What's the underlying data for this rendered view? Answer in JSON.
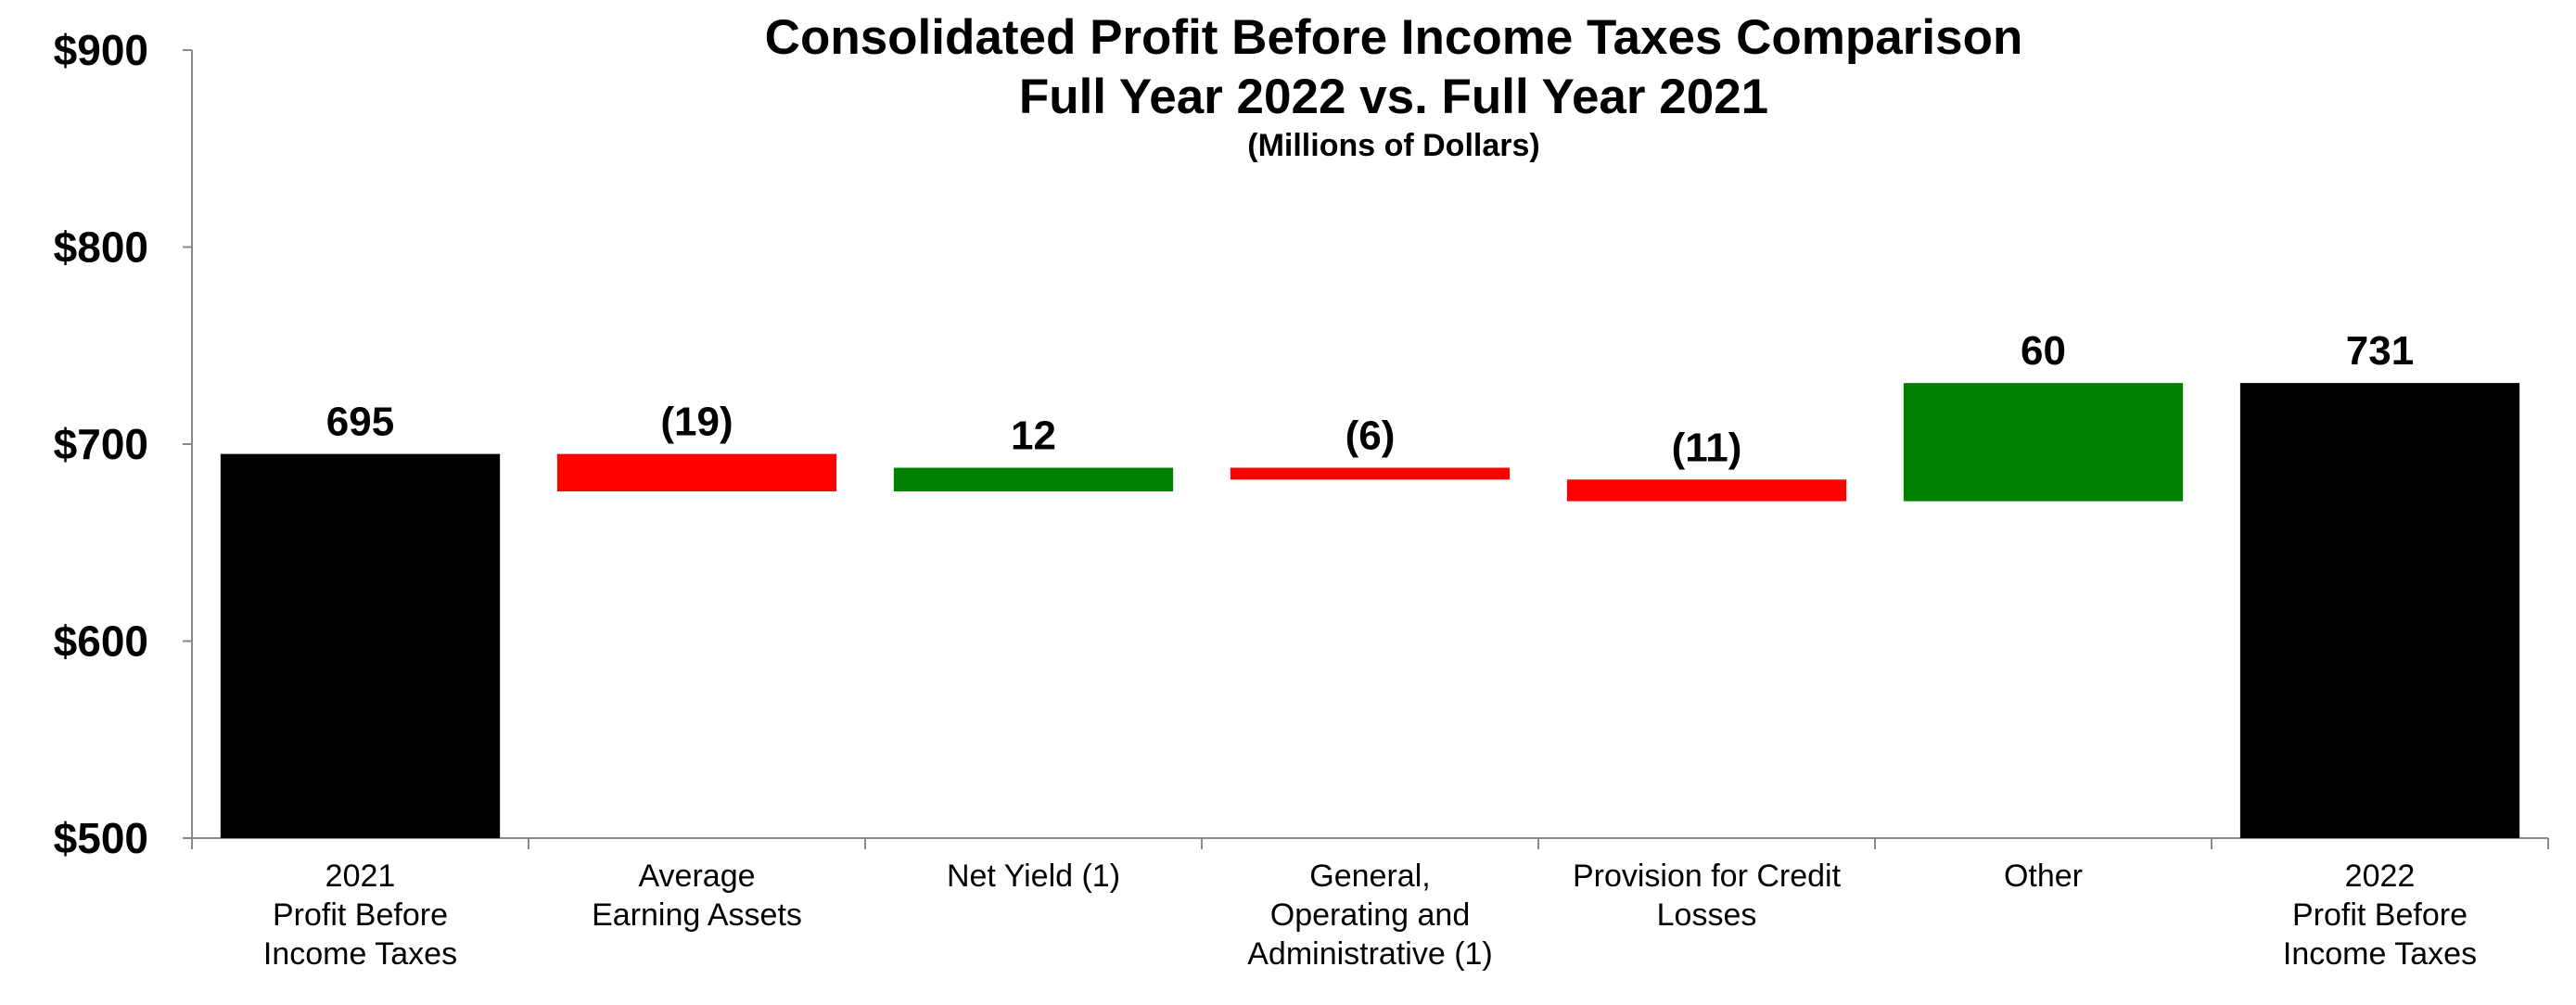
{
  "chart_data": {
    "type": "bar",
    "subtype": "waterfall",
    "title_lines": [
      "Consolidated Profit Before Income Taxes Comparison",
      "Full Year 2022 vs. Full Year 2021"
    ],
    "subtitle": "(Millions of Dollars)",
    "categories": [
      [
        "2021",
        "Profit Before",
        "Income Taxes"
      ],
      [
        "Average",
        "Earning Assets"
      ],
      [
        "Net Yield (1)"
      ],
      [
        "General,",
        "Operating and",
        "Administrative (1)"
      ],
      [
        "Provision for Credit",
        "Losses"
      ],
      [
        "Other"
      ],
      [
        "2022",
        "Profit Before",
        "Income Taxes"
      ]
    ],
    "bars": [
      {
        "kind": "total",
        "start": 500,
        "end": 695,
        "label": "695"
      },
      {
        "kind": "decrease",
        "start": 695,
        "end": 676,
        "label": "(19)"
      },
      {
        "kind": "increase",
        "start": 676,
        "end": 688,
        "label": "12"
      },
      {
        "kind": "decrease",
        "start": 688,
        "end": 682,
        "label": "(6)"
      },
      {
        "kind": "decrease",
        "start": 682,
        "end": 671,
        "label": "(11)"
      },
      {
        "kind": "increase",
        "start": 671,
        "end": 731,
        "label": "60"
      },
      {
        "kind": "total",
        "start": 500,
        "end": 731,
        "label": "731"
      }
    ],
    "ylim": [
      500,
      900
    ],
    "yticks": [
      500,
      600,
      700,
      800,
      900
    ],
    "ytick_labels": [
      "$500",
      "$600",
      "$700",
      "$800",
      "$900"
    ],
    "grid": false,
    "colors": {
      "total": "#000000",
      "increase": "#008000",
      "decrease": "#ff0000"
    }
  }
}
